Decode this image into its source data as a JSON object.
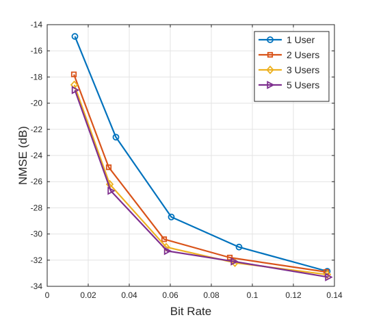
{
  "chart_data": {
    "type": "line",
    "title": "",
    "xlabel": "Bit Rate",
    "ylabel": "NMSE (dB)",
    "xlim": [
      0,
      0.14
    ],
    "ylim": [
      -34,
      -14
    ],
    "xticks": [
      0,
      0.02,
      0.04,
      0.06,
      0.08,
      0.1,
      0.12,
      0.14
    ],
    "xtick_labels": [
      "0",
      "0.02",
      "0.04",
      "0.06",
      "0.08",
      "0.1",
      "0.12",
      "0.14"
    ],
    "yticks": [
      -34,
      -32,
      -30,
      -28,
      -26,
      -24,
      -22,
      -20,
      -18,
      -16,
      -14
    ],
    "ytick_labels": [
      "-34",
      "-32",
      "-30",
      "-28",
      "-26",
      "-24",
      "-22",
      "-20",
      "-18",
      "-16",
      "-14"
    ],
    "grid": true,
    "legend_position": "top-right",
    "series": [
      {
        "name": "1 User",
        "color": "#0072BD",
        "marker": "circle",
        "x": [
          0.0135,
          0.0335,
          0.0605,
          0.0935,
          0.1365
        ],
        "y": [
          -14.9,
          -22.6,
          -28.7,
          -31.0,
          -32.85
        ]
      },
      {
        "name": "2 Users",
        "color": "#D95319",
        "marker": "square",
        "x": [
          0.013,
          0.03,
          0.057,
          0.089,
          0.136
        ],
        "y": [
          -17.8,
          -24.9,
          -30.4,
          -31.8,
          -32.9
        ]
      },
      {
        "name": "3 Users",
        "color": "#EDB120",
        "marker": "diamond",
        "x": [
          0.0132,
          0.0305,
          0.058,
          0.0915,
          0.1365
        ],
        "y": [
          -18.6,
          -26.2,
          -31.0,
          -32.2,
          -33.1
        ]
      },
      {
        "name": "5 Users",
        "color": "#7E2F8E",
        "marker": "triangle-right",
        "x": [
          0.0135,
          0.031,
          0.0585,
          0.091,
          0.137
        ],
        "y": [
          -19.0,
          -26.7,
          -31.3,
          -32.1,
          -33.3
        ]
      }
    ]
  }
}
